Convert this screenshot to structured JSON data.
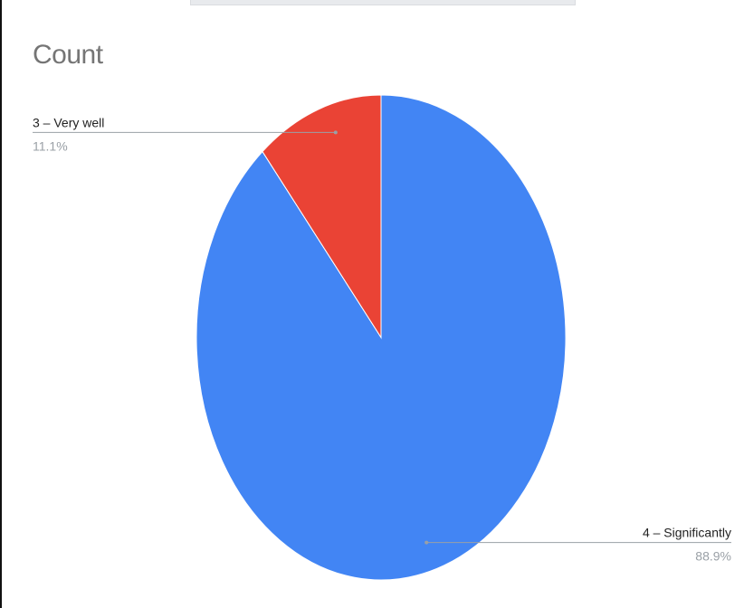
{
  "chart_data": {
    "type": "pie",
    "title": "Count",
    "slices": [
      {
        "label": "4 – Significantly",
        "value": 88.9,
        "percent_label": "88.9%",
        "color": "#4285f4"
      },
      {
        "label": "3 – Very well",
        "value": 11.1,
        "percent_label": "11.1%",
        "color": "#ea4335"
      }
    ],
    "legend": "none",
    "label_placement": "outside-with-leader-lines"
  }
}
